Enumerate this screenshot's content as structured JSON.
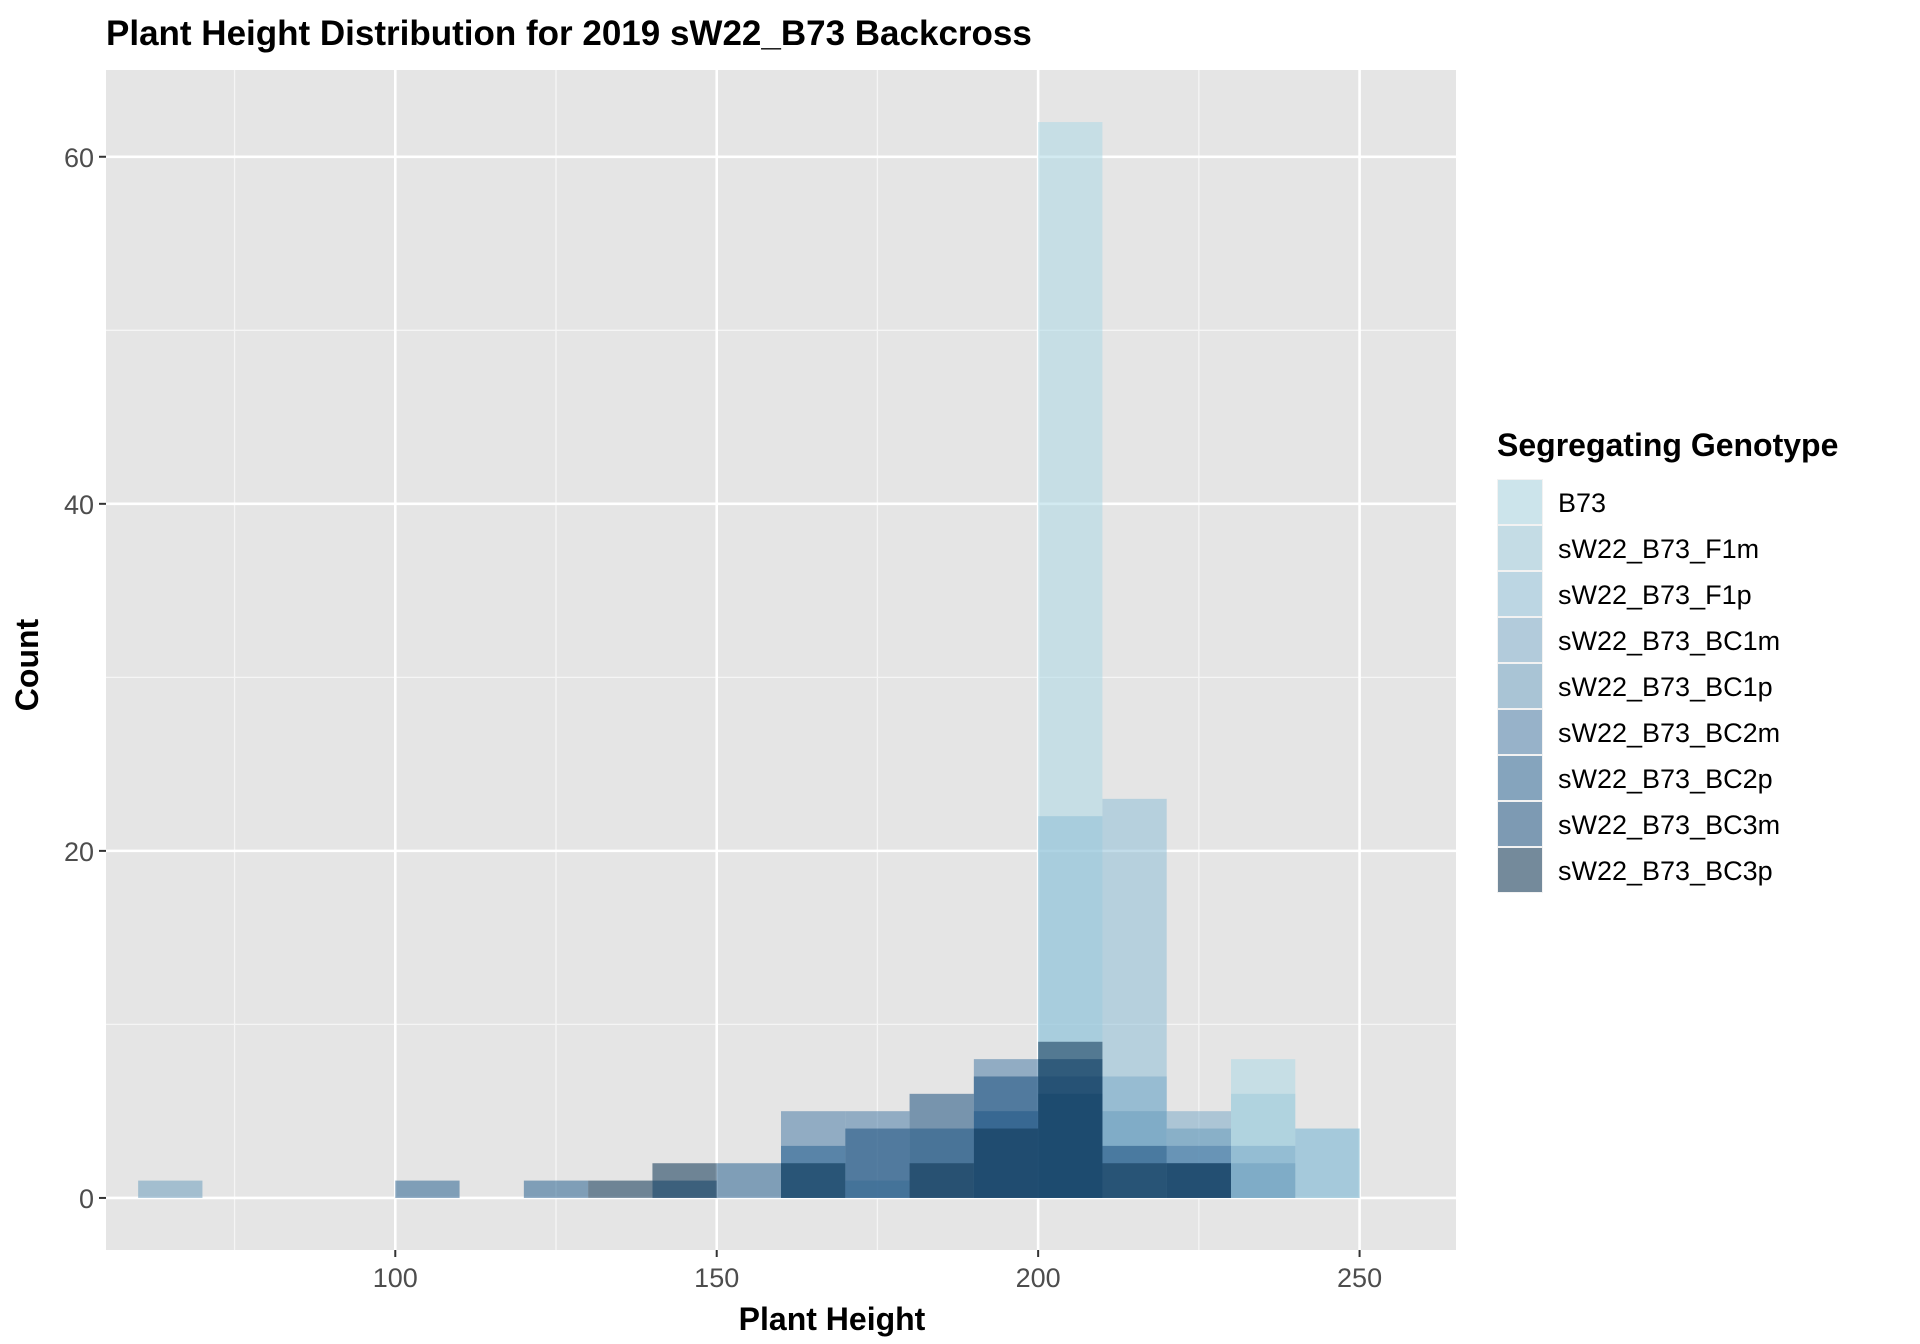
{
  "chart_data": {
    "type": "histogram",
    "title": "Plant Height Distribution for 2019 sW22_B73 Backcross",
    "xlabel": "Plant Height",
    "ylabel": "Count",
    "xlim": [
      55,
      265
    ],
    "ylim": [
      -3,
      65
    ],
    "x_ticks": [
      100,
      150,
      200,
      250
    ],
    "y_ticks": [
      0,
      20,
      40,
      60
    ],
    "bin_width": 10,
    "grid": true,
    "legend_position": "right",
    "legend_title": "Segregating Genotype",
    "series": [
      {
        "name": "B73",
        "color": "#add8e6",
        "bins": [
          [
            205,
            62
          ],
          [
            235,
            8
          ]
        ]
      },
      {
        "name": "sW22_B73_F1m",
        "color": "#9fcadb",
        "bins": [
          [
            235,
            6
          ],
          [
            245,
            4
          ]
        ]
      },
      {
        "name": "sW22_B73_F1p",
        "color": "#8fbfd7",
        "bins": [
          [
            205,
            22
          ],
          [
            215,
            23
          ],
          [
            245,
            4
          ]
        ]
      },
      {
        "name": "sW22_B73_BC1m",
        "color": "#7eacc8",
        "bins": [
          [
            215,
            7
          ],
          [
            225,
            5
          ],
          [
            235,
            3
          ]
        ]
      },
      {
        "name": "sW22_B73_BC1p",
        "color": "#6d9ebe",
        "bins": [
          [
            65,
            1
          ],
          [
            165,
            2
          ],
          [
            175,
            1
          ],
          [
            215,
            5
          ],
          [
            225,
            4
          ],
          [
            235,
            2
          ]
        ]
      },
      {
        "name": "sW22_B73_BC2m",
        "color": "#4d7ea8",
        "bins": [
          [
            165,
            5
          ],
          [
            175,
            5
          ],
          [
            195,
            8
          ],
          [
            205,
            7
          ],
          [
            225,
            3
          ]
        ]
      },
      {
        "name": "sW22_B73_BC2p",
        "color": "#2c6591",
        "bins": [
          [
            105,
            1
          ],
          [
            125,
            1
          ],
          [
            155,
            2
          ],
          [
            165,
            3
          ],
          [
            185,
            4
          ],
          [
            195,
            5
          ],
          [
            205,
            6
          ]
        ]
      },
      {
        "name": "sW22_B73_BC3m",
        "color": "#1e5280",
        "bins": [
          [
            145,
            1
          ],
          [
            175,
            4
          ],
          [
            185,
            6
          ],
          [
            195,
            7
          ],
          [
            205,
            8
          ],
          [
            215,
            3
          ],
          [
            225,
            2
          ]
        ]
      },
      {
        "name": "sW22_B73_BC3p",
        "color": "#0d3554",
        "bins": [
          [
            135,
            1
          ],
          [
            145,
            2
          ],
          [
            165,
            2
          ],
          [
            185,
            2
          ],
          [
            195,
            4
          ],
          [
            205,
            9
          ],
          [
            215,
            2
          ],
          [
            225,
            2
          ]
        ]
      }
    ]
  }
}
